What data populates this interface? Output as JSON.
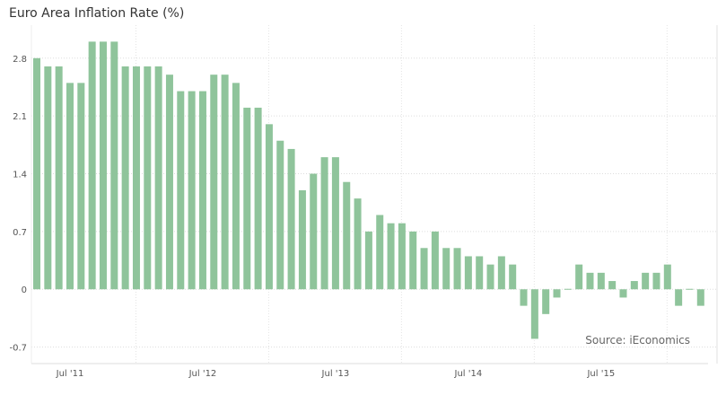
{
  "chart_data": {
    "type": "bar",
    "title": "Euro Area Inflation Rate (%)",
    "xlabel": "",
    "ylabel": "",
    "ylim": [
      -0.9,
      3.2
    ],
    "yticks": [
      -0.7,
      0,
      0.7,
      1.4,
      2.1,
      2.8
    ],
    "ytick_labels": [
      "-0.7",
      "0",
      "0.7",
      "1.4",
      "2.1",
      "2.8"
    ],
    "xtick_labels": [
      "Jul '11",
      "Jul '12",
      "Jul '13",
      "Jul '14",
      "Jul '15"
    ],
    "start": "Apr 2011",
    "end": "Apr 2016",
    "grid": true,
    "color": "#8fc49b",
    "annotation": "Source: iEconomics",
    "values": [
      2.8,
      2.7,
      2.7,
      2.5,
      2.5,
      3.0,
      3.0,
      3.0,
      2.7,
      2.7,
      2.7,
      2.7,
      2.6,
      2.4,
      2.4,
      2.4,
      2.6,
      2.6,
      2.5,
      2.2,
      2.2,
      2.0,
      1.8,
      1.7,
      1.2,
      1.4,
      1.6,
      1.6,
      1.3,
      1.1,
      0.7,
      0.9,
      0.8,
      0.8,
      0.7,
      0.5,
      0.7,
      0.5,
      0.5,
      0.4,
      0.4,
      0.3,
      0.4,
      0.3,
      -0.2,
      -0.6,
      -0.3,
      -0.1,
      0.0,
      0.3,
      0.2,
      0.2,
      0.1,
      -0.1,
      0.1,
      0.2,
      0.2,
      0.3,
      -0.2,
      0.0,
      -0.2
    ]
  }
}
